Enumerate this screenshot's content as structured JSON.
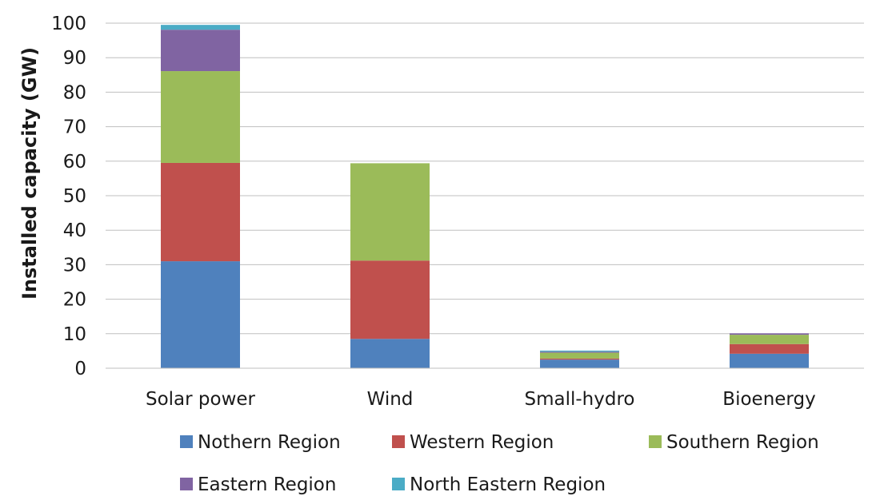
{
  "chart_data": {
    "type": "bar",
    "stacked": true,
    "title": "",
    "xlabel": "",
    "ylabel": "Installed capacity (GW)",
    "ylim": [
      0,
      100
    ],
    "yticks": [
      0,
      10,
      20,
      30,
      40,
      50,
      60,
      70,
      80,
      90,
      100
    ],
    "grid": true,
    "legend": "bottom",
    "categories": [
      "Solar power",
      "Wind",
      "Small-hydro",
      "Bioenergy"
    ],
    "series": [
      {
        "name": "Nothern Region",
        "color": "#4f81bd",
        "values": [
          31,
          8.5,
          2.5,
          4.2
        ]
      },
      {
        "name": "Western Region",
        "color": "#c0504d",
        "values": [
          28.5,
          22.7,
          0.3,
          2.8
        ]
      },
      {
        "name": "Southern Region",
        "color": "#9bbb59",
        "values": [
          26.6,
          28.2,
          1.7,
          2.7
        ]
      },
      {
        "name": "Eastern Region",
        "color": "#8064a2",
        "values": [
          12.0,
          0.0,
          0.3,
          0.4
        ]
      },
      {
        "name": "North Eastern Region",
        "color": "#4bacc6",
        "values": [
          1.4,
          0.0,
          0.3,
          0.0
        ]
      }
    ]
  }
}
